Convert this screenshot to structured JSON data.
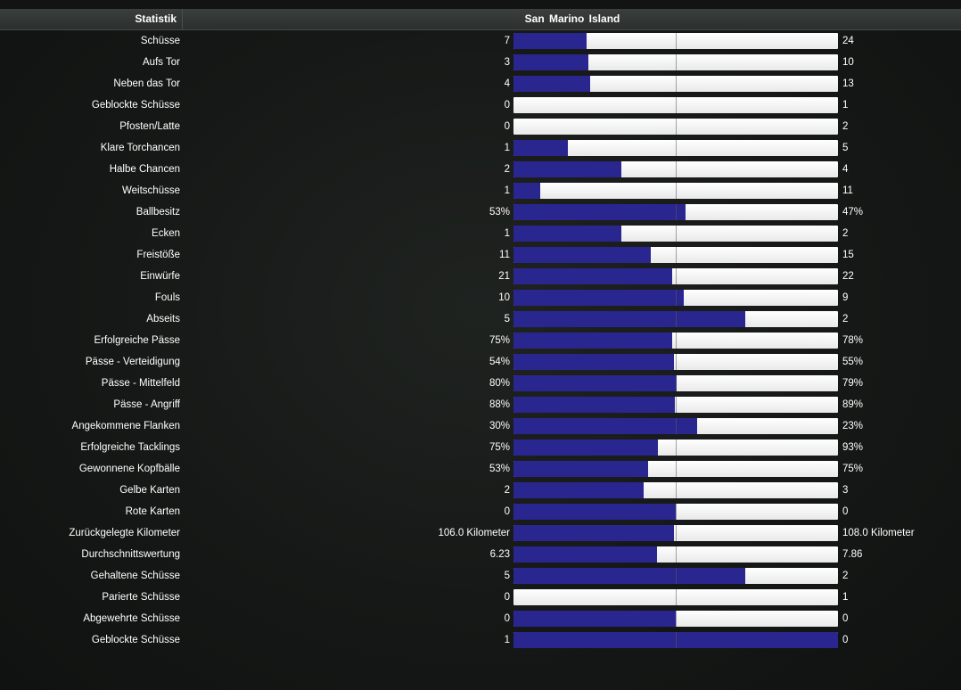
{
  "header": {
    "stat_label": "Statistik",
    "team_home": "San Marino",
    "team_away": "Island"
  },
  "colors": {
    "home_bar": "#2a2690",
    "away_bar": "#f2f2f2"
  },
  "stats": [
    {
      "label": "Schüsse",
      "home": "7",
      "away": "24",
      "home_share": 0.226
    },
    {
      "label": "Aufs Tor",
      "home": "3",
      "away": "10",
      "home_share": 0.231
    },
    {
      "label": "Neben das Tor",
      "home": "4",
      "away": "13",
      "home_share": 0.235
    },
    {
      "label": "Geblockte Schüsse",
      "home": "0",
      "away": "1",
      "home_share": 0.0
    },
    {
      "label": "Pfosten/Latte",
      "home": "0",
      "away": "2",
      "home_share": 0.0
    },
    {
      "label": "Klare Torchancen",
      "home": "1",
      "away": "5",
      "home_share": 0.167
    },
    {
      "label": "Halbe Chancen",
      "home": "2",
      "away": "4",
      "home_share": 0.333
    },
    {
      "label": "Weitschüsse",
      "home": "1",
      "away": "11",
      "home_share": 0.083
    },
    {
      "label": "Ballbesitz",
      "home": "53%",
      "away": "47%",
      "home_share": 0.53
    },
    {
      "label": "Ecken",
      "home": "1",
      "away": "2",
      "home_share": 0.333
    },
    {
      "label": "Freistöße",
      "home": "11",
      "away": "15",
      "home_share": 0.423
    },
    {
      "label": "Einwürfe",
      "home": "21",
      "away": "22",
      "home_share": 0.488
    },
    {
      "label": "Fouls",
      "home": "10",
      "away": "9",
      "home_share": 0.526
    },
    {
      "label": "Abseits",
      "home": "5",
      "away": "2",
      "home_share": 0.714
    },
    {
      "label": "Erfolgreiche Pässe",
      "home": "75%",
      "away": "78%",
      "home_share": 0.49
    },
    {
      "label": "Pässe - Verteidigung",
      "home": "54%",
      "away": "55%",
      "home_share": 0.495
    },
    {
      "label": "Pässe - Mittelfeld",
      "home": "80%",
      "away": "79%",
      "home_share": 0.503
    },
    {
      "label": "Pässe - Angriff",
      "home": "88%",
      "away": "89%",
      "home_share": 0.497
    },
    {
      "label": "Angekommene Flanken",
      "home": "30%",
      "away": "23%",
      "home_share": 0.566
    },
    {
      "label": "Erfolgreiche Tacklings",
      "home": "75%",
      "away": "93%",
      "home_share": 0.446
    },
    {
      "label": "Gewonnene Kopfbälle",
      "home": "53%",
      "away": "75%",
      "home_share": 0.414
    },
    {
      "label": "Gelbe Karten",
      "home": "2",
      "away": "3",
      "home_share": 0.4
    },
    {
      "label": "Rote Karten",
      "home": "0",
      "away": "0",
      "home_share": 0.5
    },
    {
      "label": "Zurückgelegte Kilometer",
      "home": "106.0 Kilometer",
      "away": "108.0 Kilometer",
      "home_share": 0.495
    },
    {
      "label": "Durchschnittswertung",
      "home": "6.23",
      "away": "7.86",
      "home_share": 0.442
    },
    {
      "label": "Gehaltene Schüsse",
      "home": "5",
      "away": "2",
      "home_share": 0.714
    },
    {
      "label": "Parierte Schüsse",
      "home": "0",
      "away": "1",
      "home_share": 0.0
    },
    {
      "label": "Abgewehrte Schüsse",
      "home": "0",
      "away": "0",
      "home_share": 0.5
    },
    {
      "label": "Geblockte Schüsse",
      "home": "1",
      "away": "0",
      "home_share": 1.0
    }
  ]
}
